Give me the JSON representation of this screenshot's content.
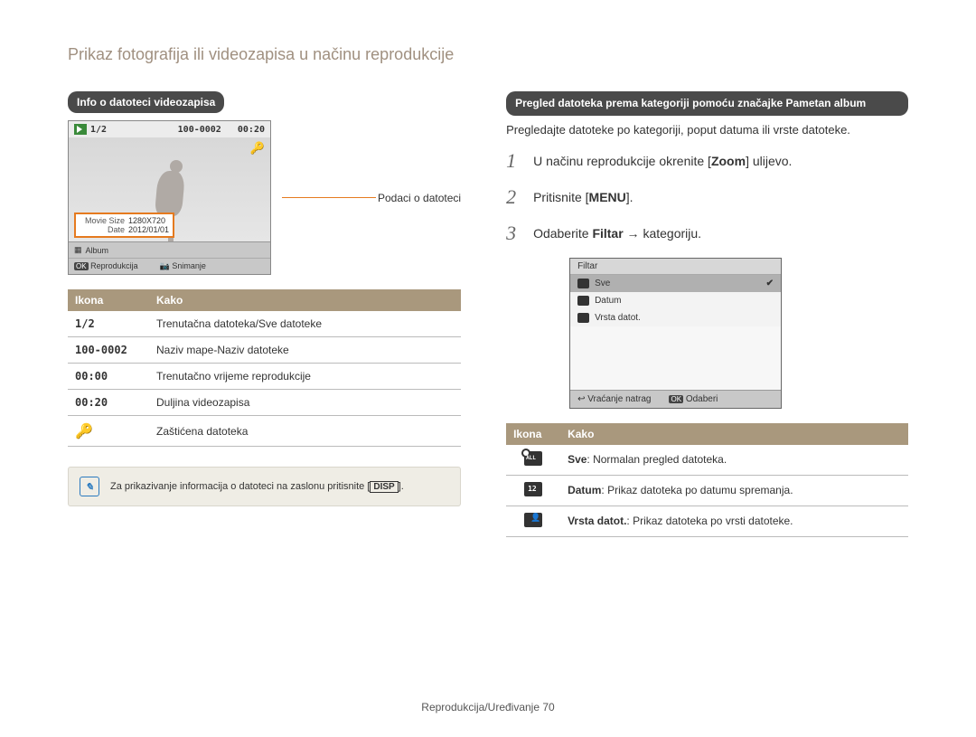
{
  "page": {
    "title": "Prikaz fotografija ili videozapisa u načinu reprodukcije",
    "footer": "Reprodukcija/Uređivanje  70"
  },
  "left": {
    "section_title": "Info o datoteci videozapisa",
    "lcd": {
      "counter": "1/2",
      "file_no": "100-0002",
      "time": "00:20",
      "movie_size_label": "Movie Size",
      "movie_size_value": "1280X720",
      "date_label": "Date",
      "date_value": "2012/01/01",
      "album": "Album",
      "ok": "OK",
      "play": "Reprodukcija",
      "rec": "Snimanje"
    },
    "callout": "Podaci o datoteci",
    "table": {
      "h1": "Ikona",
      "h2": "Kako",
      "rows": [
        {
          "ic": "1/2",
          "txt": "Trenutačna datoteka/Sve datoteke"
        },
        {
          "ic": "100-0002",
          "txt": "Naziv mape-Naziv datoteke"
        },
        {
          "ic": "00:00",
          "txt": "Trenutačno vrijeme reprodukcije"
        },
        {
          "ic": "00:20",
          "txt": "Duljina videozapisa"
        },
        {
          "ic": "🔑",
          "txt": "Zaštićena datoteka",
          "key": true
        }
      ]
    },
    "note": {
      "pre": "Za prikazivanje informacija o datoteci na zaslonu pritisnite [",
      "key": "DISP",
      "post": "]."
    }
  },
  "right": {
    "section_title": "Pregled datoteka prema kategoriji pomoću značajke Pametan album",
    "intro": "Pregledajte datoteke po kategoriji, poput datuma ili vrste datoteke.",
    "steps": [
      {
        "n": "1",
        "pre": "U načinu reprodukcije okrenite [",
        "b": "Zoom",
        "post": "] ulijevo."
      },
      {
        "n": "2",
        "pre": "Pritisnite [",
        "b": "MENU",
        "post": "].",
        "menu": true
      },
      {
        "n": "3",
        "pre": "Odaberite ",
        "b": "Filtar",
        "post": " → kategoriju."
      }
    ],
    "filter": {
      "hdr": "Filtar",
      "opts": [
        {
          "label": "Sve",
          "sel": true
        },
        {
          "label": "Datum"
        },
        {
          "label": "Vrsta datot."
        }
      ],
      "back": "Vraćanje natrag",
      "ok": "OK",
      "select": "Odaberi"
    },
    "table": {
      "h1": "Ikona",
      "h2": "Kako",
      "rows": [
        {
          "cls": "all",
          "b": "Sve",
          "txt": ": Normalan pregled datoteka."
        },
        {
          "cls": "cal",
          "b": "Datum",
          "txt": ": Prikaz datoteka po datumu spremanja."
        },
        {
          "cls": "film",
          "b": "Vrsta datot.",
          "txt": ": Prikaz datoteka po vrsti datoteke."
        }
      ]
    }
  }
}
